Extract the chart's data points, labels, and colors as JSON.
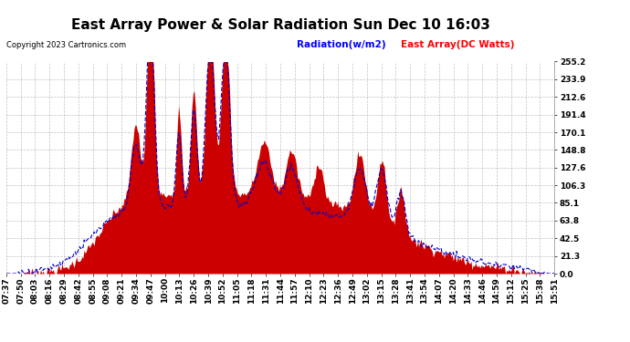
{
  "title": "East Array Power & Solar Radiation Sun Dec 10 16:03",
  "copyright": "Copyright 2023 Cartronics.com",
  "legend_radiation": "Radiation(w/m2)",
  "legend_array": "East Array(DC Watts)",
  "ylabel_right_values": [
    255.2,
    233.9,
    212.6,
    191.4,
    170.1,
    148.8,
    127.6,
    106.3,
    85.1,
    63.8,
    42.5,
    21.3,
    0.0
  ],
  "ymax": 255.2,
  "ymin": 0.0,
  "bg_color": "#ffffff",
  "plot_bg_color": "#ffffff",
  "grid_color": "#bbbbbb",
  "fill_color": "#cc0000",
  "line_color": "#0000cc",
  "x_tick_labels": [
    "07:37",
    "07:50",
    "08:03",
    "08:16",
    "08:29",
    "08:42",
    "08:55",
    "09:08",
    "09:21",
    "09:34",
    "09:47",
    "10:00",
    "10:13",
    "10:26",
    "10:39",
    "10:52",
    "11:05",
    "11:18",
    "11:31",
    "11:44",
    "11:57",
    "12:10",
    "12:23",
    "12:36",
    "12:49",
    "13:02",
    "13:15",
    "13:28",
    "13:41",
    "13:54",
    "14:07",
    "14:20",
    "14:33",
    "14:46",
    "14:59",
    "15:12",
    "15:25",
    "15:38",
    "15:51"
  ],
  "title_fontsize": 11,
  "tick_fontsize": 6.5,
  "label_fontsize": 8
}
